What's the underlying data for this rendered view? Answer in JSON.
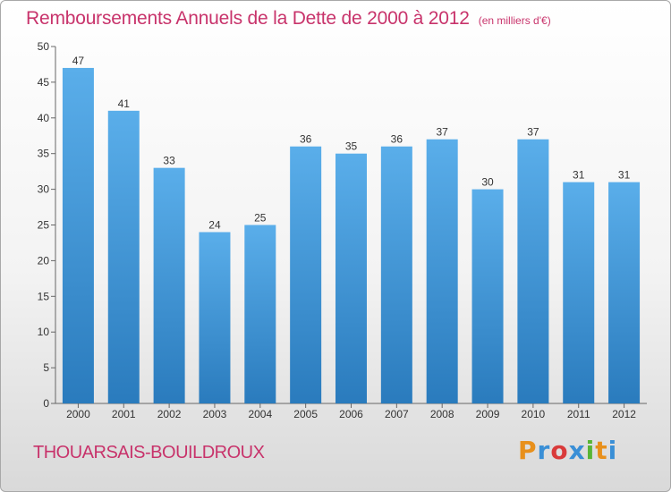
{
  "header": {
    "title": "Remboursements Annuels de la Dette de 2000 à 2012",
    "unit": "(en milliers d'€)"
  },
  "footer": {
    "commune": "THOUARSAIS-BOUILDROUX",
    "brand": "Proxiti",
    "brand_colors": [
      "#e8901c",
      "#3a8fd6",
      "#d93a3a",
      "#3a8fd6",
      "#58b535",
      "#e8901c",
      "#3a8fd6"
    ]
  },
  "colors": {
    "bar_top": "#5aaeea",
    "bar_bottom": "#2a7bbd",
    "title": "#c8336b"
  },
  "chart_data": {
    "type": "bar",
    "title": "Remboursements Annuels de la Dette de 2000 à 2012",
    "categories": [
      "2000",
      "2001",
      "2002",
      "2003",
      "2004",
      "2005",
      "2006",
      "2007",
      "2008",
      "2009",
      "2010",
      "2011",
      "2012"
    ],
    "values": [
      47,
      41,
      33,
      24,
      25,
      36,
      35,
      36,
      37,
      30,
      37,
      31,
      31
    ],
    "ylim": [
      0,
      50
    ],
    "yticks": [
      0,
      5,
      10,
      15,
      20,
      25,
      30,
      35,
      40,
      45,
      50
    ],
    "grid": false,
    "data_labels": true
  }
}
